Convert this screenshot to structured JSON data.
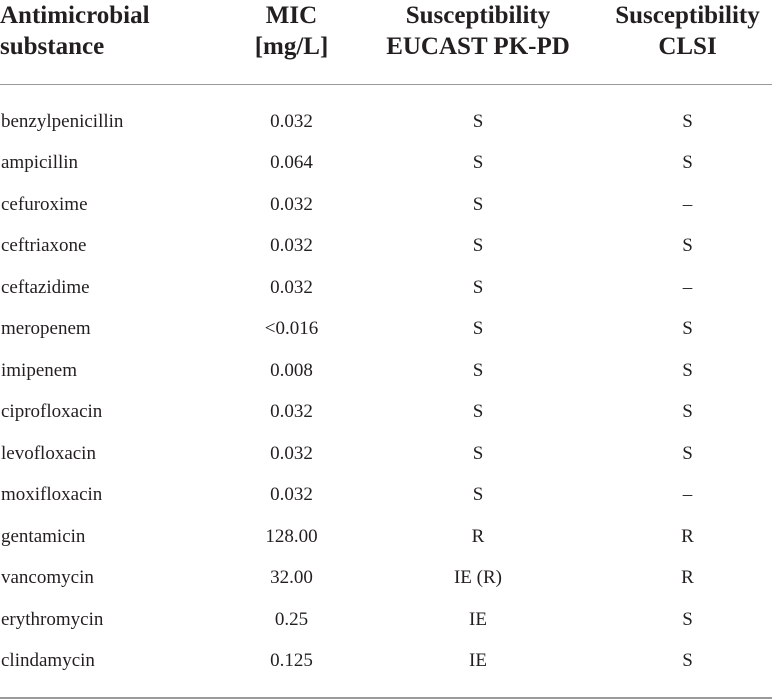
{
  "headers": {
    "col1": [
      "Antimicrobial",
      "substance"
    ],
    "col2": [
      "MIC",
      "[mg/L]"
    ],
    "col3": [
      "Susceptibility",
      "EUCAST PK-PD"
    ],
    "col4": [
      "Susceptibility",
      "CLSI"
    ]
  },
  "rows": [
    {
      "substance": "benzylpenicillin",
      "mic": "0.032",
      "eucast": "S",
      "clsi": "S"
    },
    {
      "substance": "ampicillin",
      "mic": "0.064",
      "eucast": "S",
      "clsi": "S"
    },
    {
      "substance": "cefuroxime",
      "mic": "0.032",
      "eucast": "S",
      "clsi": "–"
    },
    {
      "substance": "ceftriaxone",
      "mic": "0.032",
      "eucast": "S",
      "clsi": "S"
    },
    {
      "substance": "ceftazidime",
      "mic": "0.032",
      "eucast": "S",
      "clsi": "–"
    },
    {
      "substance": "meropenem",
      "mic": "<0.016",
      "eucast": "S",
      "clsi": "S"
    },
    {
      "substance": "imipenem",
      "mic": "0.008",
      "eucast": "S",
      "clsi": "S"
    },
    {
      "substance": "ciprofloxacin",
      "mic": "0.032",
      "eucast": "S",
      "clsi": "S"
    },
    {
      "substance": "levofloxacin",
      "mic": "0.032",
      "eucast": "S",
      "clsi": "S"
    },
    {
      "substance": "moxifloxacin",
      "mic": "0.032",
      "eucast": "S",
      "clsi": "–"
    },
    {
      "substance": "gentamicin",
      "mic": "128.00",
      "eucast": "R",
      "clsi": "R"
    },
    {
      "substance": "vancomycin",
      "mic": "32.00",
      "eucast": "IE (R)",
      "clsi": "R"
    },
    {
      "substance": "erythromycin",
      "mic": "0.25",
      "eucast": "IE",
      "clsi": "S"
    },
    {
      "substance": "clindamycin",
      "mic": "0.125",
      "eucast": "IE",
      "clsi": "S"
    }
  ]
}
